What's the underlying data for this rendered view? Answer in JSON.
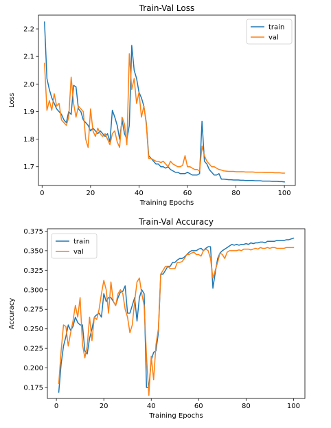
{
  "chart_data": [
    {
      "type": "line",
      "title": "Train-Val Loss",
      "xlabel": "Training Epochs",
      "ylabel": "Loss",
      "xlim": [
        -1.5,
        104.5
      ],
      "ylim": [
        1.632,
        2.25
      ],
      "xticks": [
        0,
        20,
        40,
        60,
        80,
        100
      ],
      "yticks": [
        1.7,
        1.8,
        1.9,
        2.0,
        2.1,
        2.2
      ],
      "tick_decimals": 1,
      "legend_loc": "upper right",
      "grid": false,
      "series": [
        {
          "name": "train",
          "color": "#1f77b4",
          "x": [
            1,
            2,
            3,
            4,
            5,
            6,
            7,
            8,
            9,
            10,
            11,
            12,
            13,
            14,
            15,
            16,
            17,
            18,
            19,
            20,
            21,
            22,
            23,
            24,
            25,
            26,
            27,
            28,
            29,
            30,
            31,
            32,
            33,
            34,
            35,
            36,
            37,
            38,
            39,
            40,
            41,
            42,
            43,
            44,
            45,
            46,
            47,
            48,
            49,
            50,
            51,
            52,
            53,
            54,
            55,
            56,
            57,
            58,
            59,
            60,
            61,
            62,
            63,
            64,
            65,
            66,
            67,
            68,
            69,
            70,
            71,
            72,
            73,
            74,
            75,
            76,
            77,
            78,
            79,
            80,
            81,
            82,
            83,
            84,
            85,
            86,
            87,
            88,
            89,
            90,
            91,
            92,
            93,
            94,
            95,
            96,
            97,
            98,
            99,
            100
          ],
          "values": [
            2.225,
            2.02,
            1.98,
            1.95,
            1.93,
            1.91,
            1.9,
            1.89,
            1.87,
            1.86,
            1.9,
            1.89,
            1.995,
            1.99,
            1.91,
            1.9,
            1.87,
            1.86,
            1.85,
            1.83,
            1.84,
            1.83,
            1.82,
            1.83,
            1.82,
            1.81,
            1.82,
            1.79,
            1.905,
            1.88,
            1.85,
            1.8,
            1.87,
            1.82,
            1.8,
            1.85,
            2.14,
            2.05,
            2.02,
            1.97,
            1.95,
            1.92,
            1.86,
            1.74,
            1.73,
            1.72,
            1.71,
            1.71,
            1.7,
            1.7,
            1.695,
            1.7,
            1.69,
            1.685,
            1.68,
            1.68,
            1.675,
            1.675,
            1.675,
            1.68,
            1.675,
            1.67,
            1.67,
            1.67,
            1.675,
            1.865,
            1.72,
            1.71,
            1.69,
            1.68,
            1.67,
            1.67,
            1.675,
            1.655,
            1.655,
            1.654,
            1.653,
            1.653,
            1.652,
            1.652,
            1.652,
            1.651,
            1.651,
            1.65,
            1.65,
            1.65,
            1.65,
            1.649,
            1.649,
            1.649,
            1.648,
            1.648,
            1.648,
            1.648,
            1.647,
            1.647,
            1.647,
            1.646,
            1.646,
            1.645
          ]
        },
        {
          "name": "val",
          "color": "#ff7f0e",
          "x": [
            1,
            2,
            3,
            4,
            5,
            6,
            7,
            8,
            9,
            10,
            11,
            12,
            13,
            14,
            15,
            16,
            17,
            18,
            19,
            20,
            21,
            22,
            23,
            24,
            25,
            26,
            27,
            28,
            29,
            30,
            31,
            32,
            33,
            34,
            35,
            36,
            37,
            38,
            39,
            40,
            41,
            42,
            43,
            44,
            45,
            46,
            47,
            48,
            49,
            50,
            51,
            52,
            53,
            54,
            55,
            56,
            57,
            58,
            59,
            60,
            61,
            62,
            63,
            64,
            65,
            66,
            67,
            68,
            69,
            70,
            71,
            72,
            73,
            74,
            75,
            76,
            77,
            78,
            79,
            80,
            81,
            82,
            83,
            84,
            85,
            86,
            87,
            88,
            89,
            90,
            91,
            92,
            93,
            94,
            95,
            96,
            97,
            98,
            99,
            100
          ],
          "values": [
            2.075,
            1.905,
            1.94,
            1.905,
            1.965,
            1.92,
            1.93,
            1.87,
            1.86,
            1.85,
            1.88,
            2.025,
            1.93,
            1.88,
            1.92,
            1.91,
            1.9,
            1.8,
            1.77,
            1.91,
            1.83,
            1.81,
            1.84,
            1.82,
            1.81,
            1.82,
            1.8,
            1.78,
            1.82,
            1.83,
            1.79,
            1.77,
            1.88,
            1.855,
            1.78,
            2.11,
            1.98,
            2.02,
            1.93,
            1.97,
            1.88,
            1.92,
            1.855,
            1.73,
            1.73,
            1.725,
            1.72,
            1.72,
            1.715,
            1.72,
            1.71,
            1.7,
            1.72,
            1.71,
            1.705,
            1.7,
            1.7,
            1.705,
            1.74,
            1.7,
            1.7,
            1.695,
            1.69,
            1.69,
            1.685,
            1.775,
            1.74,
            1.72,
            1.71,
            1.7,
            1.7,
            1.695,
            1.69,
            1.688,
            1.685,
            1.684,
            1.683,
            1.683,
            1.683,
            1.682,
            1.682,
            1.682,
            1.682,
            1.681,
            1.681,
            1.681,
            1.681,
            1.68,
            1.68,
            1.68,
            1.68,
            1.679,
            1.679,
            1.679,
            1.679,
            1.678,
            1.678,
            1.678,
            1.677,
            1.677
          ]
        }
      ]
    },
    {
      "type": "line",
      "title": "Train-Val Accuracy",
      "xlabel": "Training Epochs",
      "ylabel": "Accuracy",
      "xlim": [
        -3.8,
        104.8
      ],
      "ylim": [
        0.161,
        0.378
      ],
      "xticks": [
        0,
        20,
        40,
        60,
        80,
        100
      ],
      "yticks": [
        0.175,
        0.2,
        0.225,
        0.25,
        0.275,
        0.3,
        0.325,
        0.35,
        0.375
      ],
      "tick_decimals": 3,
      "legend_loc": "upper left",
      "grid": false,
      "series": [
        {
          "name": "train",
          "color": "#1f77b4",
          "x": [
            1,
            2,
            3,
            4,
            5,
            6,
            7,
            8,
            9,
            10,
            11,
            12,
            13,
            14,
            15,
            16,
            17,
            18,
            19,
            20,
            21,
            22,
            23,
            24,
            25,
            26,
            27,
            28,
            29,
            30,
            31,
            32,
            33,
            34,
            35,
            36,
            37,
            38,
            39,
            40,
            41,
            42,
            43,
            44,
            45,
            46,
            47,
            48,
            49,
            50,
            51,
            52,
            53,
            54,
            55,
            56,
            57,
            58,
            59,
            60,
            61,
            62,
            63,
            64,
            65,
            66,
            67,
            68,
            69,
            70,
            71,
            72,
            73,
            74,
            75,
            76,
            77,
            78,
            79,
            80,
            81,
            82,
            83,
            84,
            85,
            86,
            87,
            88,
            89,
            90,
            91,
            92,
            93,
            94,
            95,
            96,
            97,
            98,
            99,
            100
          ],
          "values": [
            0.169,
            0.205,
            0.228,
            0.24,
            0.255,
            0.248,
            0.253,
            0.265,
            0.258,
            0.255,
            0.255,
            0.222,
            0.218,
            0.238,
            0.25,
            0.265,
            0.268,
            0.27,
            0.265,
            0.295,
            0.285,
            0.29,
            0.29,
            0.285,
            0.28,
            0.29,
            0.297,
            0.298,
            0.305,
            0.27,
            0.27,
            0.28,
            0.29,
            0.26,
            0.29,
            0.3,
            0.295,
            0.175,
            0.175,
            0.21,
            0.22,
            0.222,
            0.245,
            0.32,
            0.32,
            0.325,
            0.33,
            0.33,
            0.335,
            0.335,
            0.338,
            0.34,
            0.34,
            0.342,
            0.345,
            0.348,
            0.35,
            0.35,
            0.35,
            0.352,
            0.353,
            0.35,
            0.353,
            0.355,
            0.355,
            0.302,
            0.322,
            0.34,
            0.347,
            0.35,
            0.352,
            0.354,
            0.356,
            0.358,
            0.357,
            0.358,
            0.357,
            0.358,
            0.358,
            0.359,
            0.358,
            0.36,
            0.359,
            0.36,
            0.36,
            0.361,
            0.361,
            0.36,
            0.362,
            0.362,
            0.362,
            0.362,
            0.363,
            0.363,
            0.363,
            0.363,
            0.364,
            0.364,
            0.365,
            0.366
          ]
        },
        {
          "name": "val",
          "color": "#ff7f0e",
          "x": [
            1,
            2,
            3,
            4,
            5,
            6,
            7,
            8,
            9,
            10,
            11,
            12,
            13,
            14,
            15,
            16,
            17,
            18,
            19,
            20,
            21,
            22,
            23,
            24,
            25,
            26,
            27,
            28,
            29,
            30,
            31,
            32,
            33,
            34,
            35,
            36,
            37,
            38,
            39,
            40,
            41,
            42,
            43,
            44,
            45,
            46,
            47,
            48,
            49,
            50,
            51,
            52,
            53,
            54,
            55,
            56,
            57,
            58,
            59,
            60,
            61,
            62,
            63,
            64,
            65,
            66,
            67,
            68,
            69,
            70,
            71,
            72,
            73,
            74,
            75,
            76,
            77,
            78,
            79,
            80,
            81,
            82,
            83,
            84,
            85,
            86,
            87,
            88,
            89,
            90,
            91,
            92,
            93,
            94,
            95,
            96,
            97,
            98,
            99,
            100
          ],
          "values": [
            0.18,
            0.222,
            0.255,
            0.253,
            0.228,
            0.245,
            0.26,
            0.28,
            0.265,
            0.29,
            0.23,
            0.213,
            0.228,
            0.265,
            0.235,
            0.265,
            0.262,
            0.275,
            0.295,
            0.312,
            0.3,
            0.27,
            0.31,
            0.285,
            0.28,
            0.295,
            0.3,
            0.295,
            0.275,
            0.265,
            0.245,
            0.255,
            0.285,
            0.31,
            0.315,
            0.295,
            0.28,
            0.215,
            0.165,
            0.215,
            0.185,
            0.23,
            0.25,
            0.32,
            0.325,
            0.33,
            0.33,
            0.327,
            0.327,
            0.327,
            0.335,
            0.335,
            0.336,
            0.34,
            0.345,
            0.345,
            0.347,
            0.348,
            0.345,
            0.345,
            0.343,
            0.35,
            0.352,
            0.35,
            0.34,
            0.315,
            0.325,
            0.335,
            0.347,
            0.345,
            0.34,
            0.348,
            0.35,
            0.35,
            0.35,
            0.35,
            0.351,
            0.35,
            0.352,
            0.352,
            0.352,
            0.351,
            0.352,
            0.353,
            0.352,
            0.354,
            0.353,
            0.353,
            0.354,
            0.353,
            0.354,
            0.354,
            0.353,
            0.353,
            0.353,
            0.353,
            0.354,
            0.354,
            0.354,
            0.354
          ]
        }
      ]
    }
  ]
}
